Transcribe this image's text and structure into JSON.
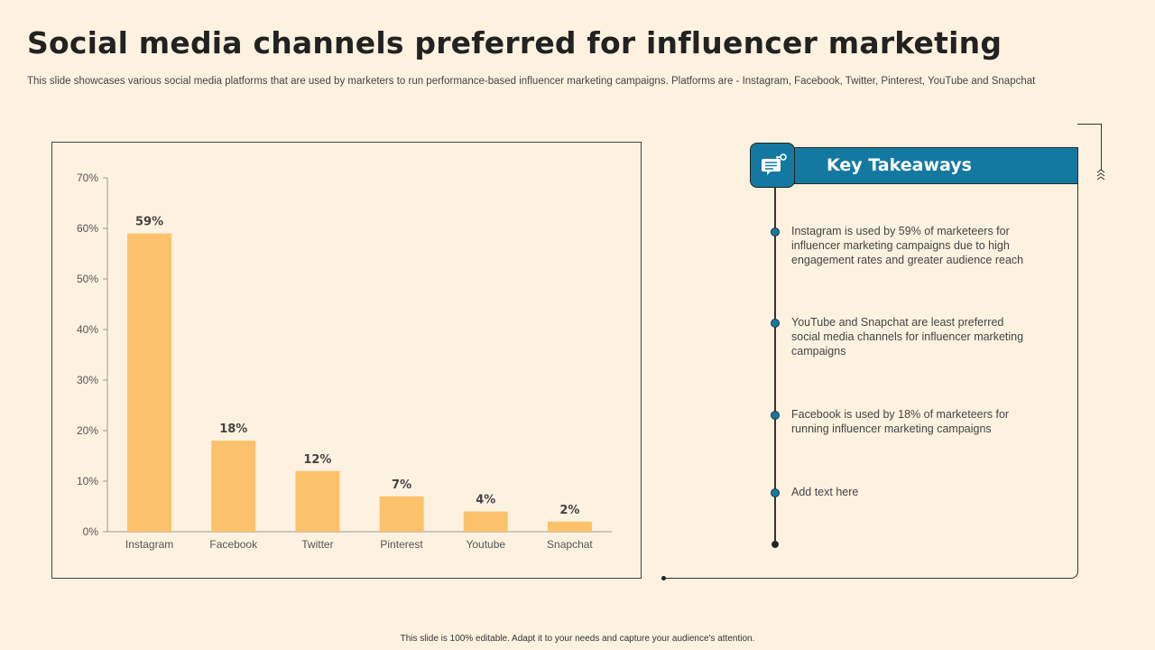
{
  "header": {
    "title": "Social media channels preferred for influencer marketing",
    "subtitle": "This slide showcases various social media platforms that are used by marketers to run performance-based influencer marketing campaigns. Platforms are - Instagram, Facebook, Twitter, Pinterest, YouTube and Snapchat"
  },
  "chart_data": {
    "type": "bar",
    "categories": [
      "Instagram",
      "Facebook",
      "Twitter",
      "Pinterest",
      "Youtube",
      "Snapchat"
    ],
    "values": [
      59,
      18,
      12,
      7,
      4,
      2
    ],
    "data_labels": [
      "59%",
      "18%",
      "12%",
      "7%",
      "4%",
      "2%"
    ],
    "yticks": [
      "0%",
      "10%",
      "20%",
      "30%",
      "40%",
      "50%",
      "60%",
      "70%"
    ],
    "ylim": [
      0,
      70
    ],
    "bar_color": "#fcc16b",
    "grid": false,
    "legend": "none"
  },
  "takeaways": {
    "title": "Key Takeaways",
    "icon": "chat-bubble-key-icon",
    "accent_color": "#1479a1",
    "items": [
      "Instagram is used by 59% of marketeers for influencer marketing campaigns due to high engagement rates and greater audience reach",
      "YouTube and Snapchat are least preferred social media channels for influencer marketing campaigns",
      "Facebook is used by 18% of marketeers for running influencer marketing campaigns",
      "Add text here"
    ]
  },
  "footer": {
    "note": "This slide is 100% editable. Adapt it to your needs and capture your audience's attention."
  }
}
